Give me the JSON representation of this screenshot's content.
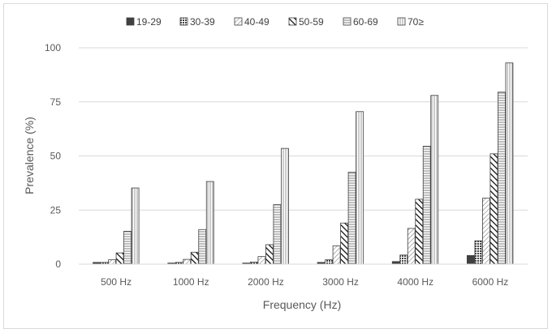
{
  "chart_data": {
    "type": "bar",
    "xlabel": "Frequency (Hz)",
    "ylabel": "Prevalence (%)",
    "ylim": [
      0,
      100
    ],
    "yticks": [
      0,
      25,
      50,
      75,
      100
    ],
    "grid": true,
    "legend": "top",
    "categories": [
      "500 Hz",
      "1000 Hz",
      "2000 Hz",
      "3000 Hz",
      "4000 Hz",
      "6000 Hz"
    ],
    "series": [
      {
        "name": "19-29",
        "values": [
          0.8,
          0.5,
          0.5,
          0.8,
          1.2,
          4.0
        ],
        "pattern": "solid"
      },
      {
        "name": "30-39",
        "values": [
          0.8,
          0.8,
          1.0,
          2.0,
          4.2,
          10.8
        ],
        "pattern": "dots"
      },
      {
        "name": "40-49",
        "values": [
          2.0,
          2.2,
          3.5,
          8.5,
          16.5,
          30.5
        ],
        "pattern": "diag-light"
      },
      {
        "name": "50-59",
        "values": [
          5.2,
          5.5,
          9.0,
          19.0,
          30.0,
          51.0
        ],
        "pattern": "diag-bold"
      },
      {
        "name": "60-69",
        "values": [
          15.2,
          16.0,
          27.5,
          42.5,
          54.5,
          79.5
        ],
        "pattern": "horizontal"
      },
      {
        "name": "70≥",
        "values": [
          35.2,
          38.2,
          53.5,
          70.5,
          78.0,
          93.0
        ],
        "pattern": "vertical"
      }
    ]
  }
}
